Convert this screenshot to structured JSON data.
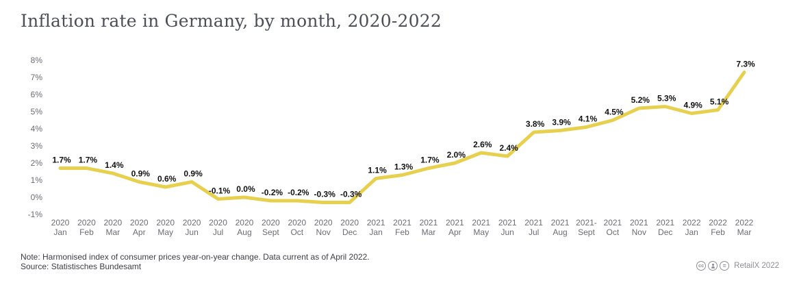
{
  "title": "Inflation rate in Germany, by month, 2020-2022",
  "note": "Note: Harmonised index of consumer prices year-on-year change. Data current as of April 2022.",
  "source": "Source: Statistisches Bundesamt",
  "attribution": {
    "text": "RetailX 2022",
    "cc_label": "cc",
    "nd_label": "="
  },
  "colors": {
    "line": "#e8d04f",
    "title_text": "#4d4f58",
    "axis_text": "#6b6b73",
    "point_label_text": "#111111",
    "note_text": "#3d3d44",
    "badge": "#8e8e96"
  },
  "chart_data": {
    "type": "line",
    "title": "Inflation rate in Germany, by month, 2020-2022",
    "xlabel": "",
    "ylabel": "",
    "ylim": [
      -1,
      8
    ],
    "grid": false,
    "legend": "none",
    "yticks": [
      "8%",
      "7%",
      "6%",
      "5%",
      "4%",
      "3%",
      "2%",
      "1%",
      "0%",
      "-1%"
    ],
    "ytick_values": [
      8,
      7,
      6,
      5,
      4,
      3,
      2,
      1,
      0,
      -1
    ],
    "categories_year": [
      "2020",
      "2020",
      "2020",
      "2020",
      "2020",
      "2020",
      "2020",
      "2020",
      "2020",
      "2020",
      "2020",
      "2020",
      "2021",
      "2021",
      "2021",
      "2021",
      "2021",
      "2021",
      "2021",
      "2021",
      "2021-",
      "2021",
      "2021",
      "2021",
      "2022",
      "2022",
      "2022"
    ],
    "categories_month": [
      "Jan",
      "Feb",
      "Mar",
      "Apr",
      "May",
      "Jun",
      "Jul",
      "Aug",
      "Sept",
      "Oct",
      "Nov",
      "Dec",
      "Jan",
      "Feb",
      "Mar",
      "Apr",
      "May",
      "Jun",
      "Jul",
      "Aug",
      "Sept",
      "Oct",
      "Nov",
      "Dec",
      "Jan",
      "Feb",
      "Mar"
    ],
    "series": [
      {
        "name": "Inflation rate",
        "values": [
          1.7,
          1.7,
          1.4,
          0.9,
          0.6,
          0.9,
          -0.1,
          0.0,
          -0.2,
          -0.2,
          -0.3,
          -0.3,
          1.1,
          1.3,
          1.7,
          2.0,
          2.6,
          2.4,
          3.8,
          3.9,
          4.1,
          4.5,
          5.2,
          5.3,
          4.9,
          5.1,
          7.3
        ]
      }
    ],
    "point_labels": [
      "1.7%",
      "1.7%",
      "1.4%",
      "0.9%",
      "0.6%",
      "0.9%",
      "-0.1%",
      "0.0%",
      "-0.2%",
      "-0.2%",
      "-0.3%",
      "-0.3%",
      "1.1%",
      "1.3%",
      "1.7%",
      "2.0%",
      "2.6%",
      "2.4%",
      "3.8%",
      "3.9%",
      "4.1%",
      "4.5%",
      "5.2%",
      "5.3%",
      "4.9%",
      "5.1%",
      "7.3%"
    ]
  }
}
